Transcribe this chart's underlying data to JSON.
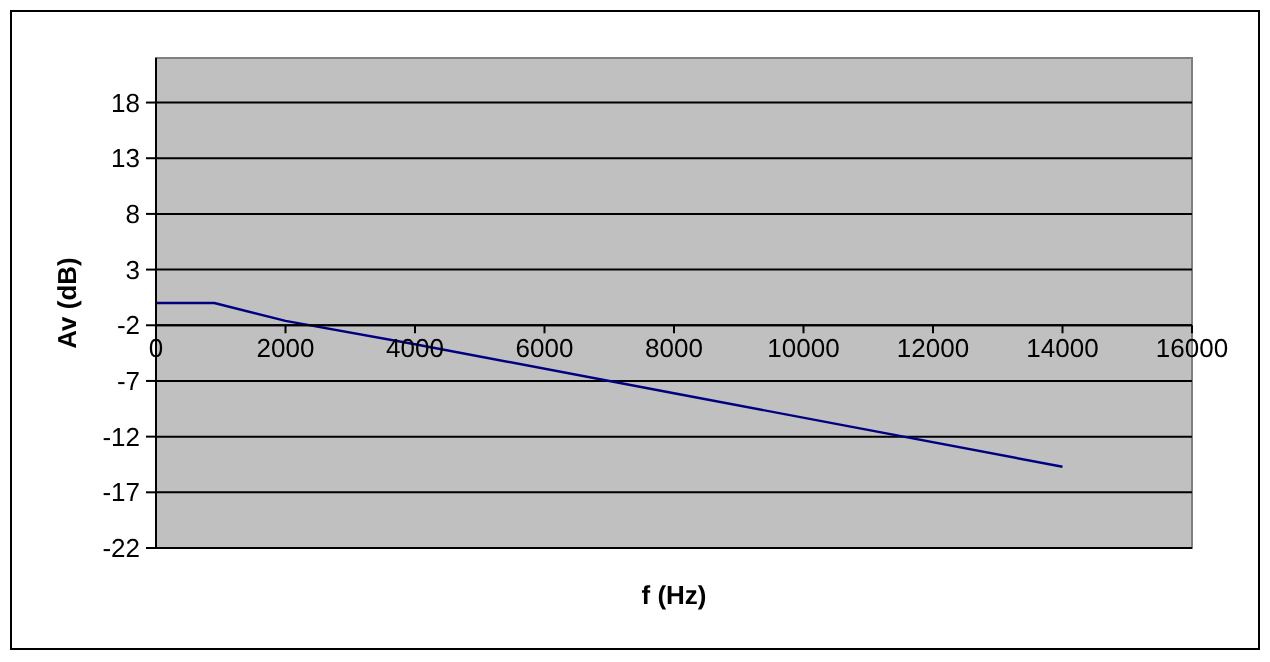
{
  "chart_data": {
    "type": "line",
    "xlabel": "f (Hz)",
    "ylabel": "Av (dB)",
    "x": [
      0,
      900,
      2000,
      4000,
      8000,
      14000
    ],
    "series": [
      {
        "color": "#000080",
        "values": [
          0,
          0,
          -1.6,
          -3.7,
          -8.1,
          -14.7
        ]
      }
    ],
    "xlim": [
      0,
      16000
    ],
    "xticks": [
      0,
      2000,
      4000,
      6000,
      8000,
      10000,
      12000,
      14000,
      16000
    ],
    "ylim": [
      -22,
      22
    ],
    "yticks": [
      -22,
      -17,
      -12,
      -7,
      -2,
      3,
      8,
      13,
      18
    ],
    "grid": "y",
    "marker": "none",
    "line_style": "solid"
  }
}
